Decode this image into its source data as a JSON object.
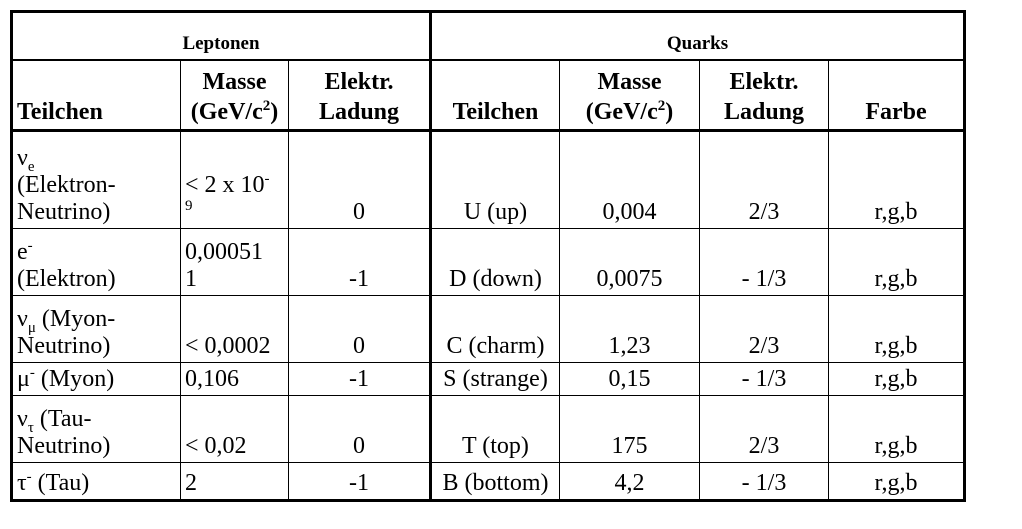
{
  "groups": {
    "leptons": "Leptonen",
    "quarks": "Quarks"
  },
  "headers": {
    "lepton_particle": "Teilchen",
    "lepton_mass_1": "Masse",
    "lepton_mass_2": "(GeV/c",
    "lepton_mass_sup": "2",
    "lepton_mass_3": ")",
    "lepton_charge": "Elektr.\nLadung",
    "quark_particle": "Teilchen",
    "quark_mass_1": "Masse",
    "quark_mass_2": "(GeV/c",
    "quark_mass_sup": "2",
    "quark_mass_3": ")",
    "quark_charge": "Elektr.\nLadung",
    "quark_color": "Farbe"
  },
  "rows": [
    {
      "lepton_sym": "ν",
      "lepton_sub": "e",
      "lepton_sup": "",
      "lepton_desc": "(Elektron-\nNeutrino)",
      "lepton_mass": "< 2 x 10",
      "lepton_mass_sup": "-",
      "lepton_mass_wrap": "9",
      "lepton_charge": "0",
      "quark": "U (up)",
      "quark_mass": "0,004",
      "quark_charge": "2/3",
      "quark_color": "r,g,b"
    },
    {
      "lepton_sym": "e",
      "lepton_sub": "",
      "lepton_sup": "-",
      "lepton_desc": "(Elektron)",
      "lepton_mass": "0,00051\n1",
      "lepton_charge": "-1",
      "quark": "D (down)",
      "quark_mass": "0,0075",
      "quark_charge": "- 1/3",
      "quark_color": "r,g,b"
    },
    {
      "lepton_sym": "ν",
      "lepton_sub": "μ",
      "lepton_sup": "",
      "lepton_desc": " (Myon-\nNeutrino)",
      "lepton_mass": "< 0,0002",
      "lepton_charge": "0",
      "quark": "C (charm)",
      "quark_mass": "1,23",
      "quark_charge": "2/3",
      "quark_color": "r,g,b"
    },
    {
      "lepton_sym": "μ",
      "lepton_sub": "",
      "lepton_sup": "-",
      "lepton_desc": " (Myon)",
      "lepton_mass": "0,106",
      "lepton_charge": "-1",
      "quark": "S (strange)",
      "quark_mass": "0,15",
      "quark_charge": "- 1/3",
      "quark_color": "r,g,b"
    },
    {
      "lepton_sym": "ν",
      "lepton_sub": "τ",
      "lepton_sup": "",
      "lepton_desc": " (Tau-\nNeutrino)",
      "lepton_mass": "< 0,02",
      "lepton_charge": "0",
      "quark": "T (top)",
      "quark_mass": "175",
      "quark_charge": "2/3",
      "quark_color": "r,g,b"
    },
    {
      "lepton_sym": "τ",
      "lepton_sub": "",
      "lepton_sup": "-",
      "lepton_desc": " (Tau)",
      "lepton_mass": "2",
      "lepton_charge": "-1",
      "quark": "B (bottom)",
      "quark_mass": "4,2",
      "quark_charge": "- 1/3",
      "quark_color": "r,g,b"
    }
  ]
}
